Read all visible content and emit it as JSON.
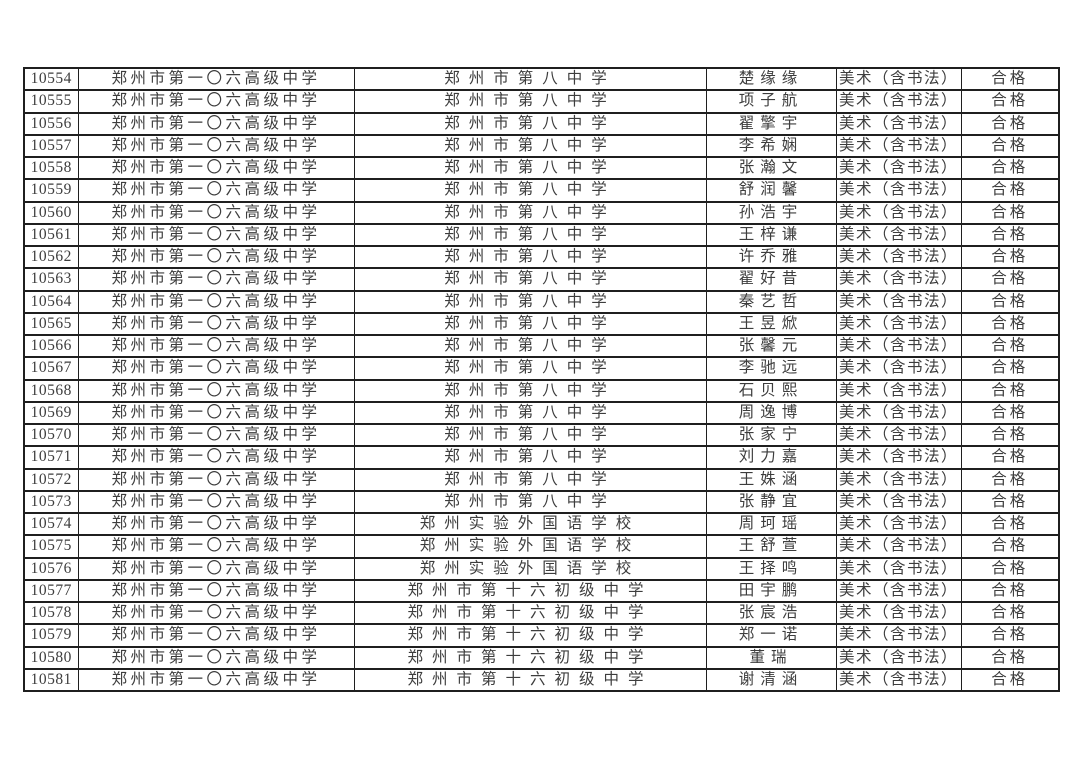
{
  "page": {
    "background_color": "#ffffff",
    "text_color": "#3d3d3d",
    "border_color": "#1f1f1f"
  },
  "table": {
    "rows": [
      [
        "10554",
        "郑州市第一〇六高级中学",
        "郑州市第八中学",
        "楚缘缘",
        "美术（含书法）",
        "合格"
      ],
      [
        "10555",
        "郑州市第一〇六高级中学",
        "郑州市第八中学",
        "项子航",
        "美术（含书法）",
        "合格"
      ],
      [
        "10556",
        "郑州市第一〇六高级中学",
        "郑州市第八中学",
        "翟擎宇",
        "美术（含书法）",
        "合格"
      ],
      [
        "10557",
        "郑州市第一〇六高级中学",
        "郑州市第八中学",
        "李希娴",
        "美术（含书法）",
        "合格"
      ],
      [
        "10558",
        "郑州市第一〇六高级中学",
        "郑州市第八中学",
        "张瀚文",
        "美术（含书法）",
        "合格"
      ],
      [
        "10559",
        "郑州市第一〇六高级中学",
        "郑州市第八中学",
        "舒润馨",
        "美术（含书法）",
        "合格"
      ],
      [
        "10560",
        "郑州市第一〇六高级中学",
        "郑州市第八中学",
        "孙浩宇",
        "美术（含书法）",
        "合格"
      ],
      [
        "10561",
        "郑州市第一〇六高级中学",
        "郑州市第八中学",
        "王梓谦",
        "美术（含书法）",
        "合格"
      ],
      [
        "10562",
        "郑州市第一〇六高级中学",
        "郑州市第八中学",
        "许乔雅",
        "美术（含书法）",
        "合格"
      ],
      [
        "10563",
        "郑州市第一〇六高级中学",
        "郑州市第八中学",
        "翟好昔",
        "美术（含书法）",
        "合格"
      ],
      [
        "10564",
        "郑州市第一〇六高级中学",
        "郑州市第八中学",
        "秦艺哲",
        "美术（含书法）",
        "合格"
      ],
      [
        "10565",
        "郑州市第一〇六高级中学",
        "郑州市第八中学",
        "王昱焮",
        "美术（含书法）",
        "合格"
      ],
      [
        "10566",
        "郑州市第一〇六高级中学",
        "郑州市第八中学",
        "张馨元",
        "美术（含书法）",
        "合格"
      ],
      [
        "10567",
        "郑州市第一〇六高级中学",
        "郑州市第八中学",
        "李驰远",
        "美术（含书法）",
        "合格"
      ],
      [
        "10568",
        "郑州市第一〇六高级中学",
        "郑州市第八中学",
        "石贝熙",
        "美术（含书法）",
        "合格"
      ],
      [
        "10569",
        "郑州市第一〇六高级中学",
        "郑州市第八中学",
        "周逸博",
        "美术（含书法）",
        "合格"
      ],
      [
        "10570",
        "郑州市第一〇六高级中学",
        "郑州市第八中学",
        "张家宁",
        "美术（含书法）",
        "合格"
      ],
      [
        "10571",
        "郑州市第一〇六高级中学",
        "郑州市第八中学",
        "刘力嘉",
        "美术（含书法）",
        "合格"
      ],
      [
        "10572",
        "郑州市第一〇六高级中学",
        "郑州市第八中学",
        "王姝涵",
        "美术（含书法）",
        "合格"
      ],
      [
        "10573",
        "郑州市第一〇六高级中学",
        "郑州市第八中学",
        "张静宜",
        "美术（含书法）",
        "合格"
      ],
      [
        "10574",
        "郑州市第一〇六高级中学",
        "郑州实验外国语学校",
        "周珂瑶",
        "美术（含书法）",
        "合格"
      ],
      [
        "10575",
        "郑州市第一〇六高级中学",
        "郑州实验外国语学校",
        "王舒萱",
        "美术（含书法）",
        "合格"
      ],
      [
        "10576",
        "郑州市第一〇六高级中学",
        "郑州实验外国语学校",
        "王择鸣",
        "美术（含书法）",
        "合格"
      ],
      [
        "10577",
        "郑州市第一〇六高级中学",
        "郑州市第十六初级中学",
        "田宇鹏",
        "美术（含书法）",
        "合格"
      ],
      [
        "10578",
        "郑州市第一〇六高级中学",
        "郑州市第十六初级中学",
        "张宸浩",
        "美术（含书法）",
        "合格"
      ],
      [
        "10579",
        "郑州市第一〇六高级中学",
        "郑州市第十六初级中学",
        "郑一诺",
        "美术（含书法）",
        "合格"
      ],
      [
        "10580",
        "郑州市第一〇六高级中学",
        "郑州市第十六初级中学",
        "董瑞",
        "美术（含书法）",
        "合格"
      ],
      [
        "10581",
        "郑州市第一〇六高级中学",
        "郑州市第十六初级中学",
        "谢清涵",
        "美术（含书法）",
        "合格"
      ]
    ]
  }
}
